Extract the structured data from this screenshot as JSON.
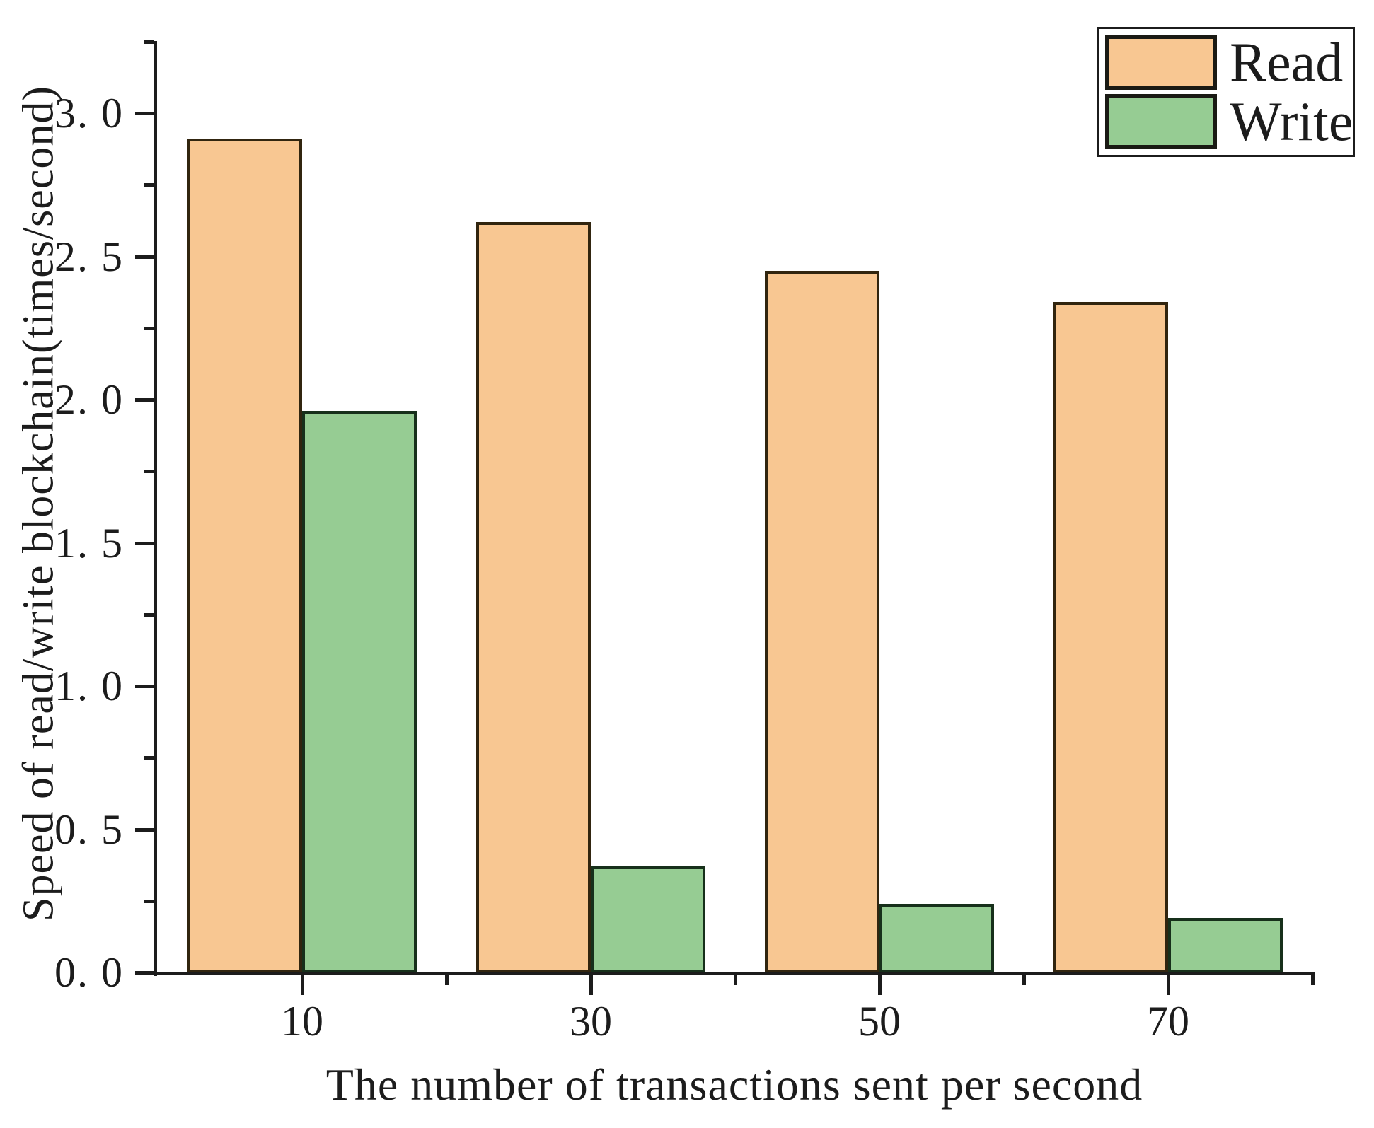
{
  "chart_data": {
    "type": "bar",
    "title": "",
    "categories": [
      "10",
      "30",
      "50",
      "70"
    ],
    "series": [
      {
        "name": "Read",
        "color": "#f8c792",
        "border_color": "#31250f",
        "values": [
          2.91,
          2.62,
          2.45,
          2.34
        ]
      },
      {
        "name": "Write",
        "color": "#96cc93",
        "border_color": "#17301b",
        "values": [
          1.96,
          0.37,
          0.24,
          0.19
        ]
      }
    ],
    "xlabel": "The number of transactions sent per second",
    "ylabel": "Speed of read/write blockchain(times/second)",
    "ylim": [
      0,
      3.25
    ],
    "xlim": [
      0,
      80
    ],
    "y_ticks": [
      {
        "value": 0.0,
        "label": "0. 0"
      },
      {
        "value": 0.5,
        "label": "0. 5"
      },
      {
        "value": 1.0,
        "label": "1. 0"
      },
      {
        "value": 1.5,
        "label": "1. 5"
      },
      {
        "value": 2.0,
        "label": "2. 0"
      },
      {
        "value": 2.5,
        "label": "2. 5"
      },
      {
        "value": 3.0,
        "label": "3. 0"
      }
    ],
    "y_minor_ticks": [
      0.25,
      0.75,
      1.25,
      1.75,
      2.25,
      2.75,
      3.25
    ],
    "x_minor_ticks": [
      20,
      40,
      60,
      80
    ],
    "grid": false,
    "legend_position": "top-right",
    "axis_color": "#1c1c1c",
    "background_color": "#ffffff"
  },
  "legend": {
    "items": [
      {
        "label": "Read"
      },
      {
        "label": "Write"
      }
    ]
  }
}
